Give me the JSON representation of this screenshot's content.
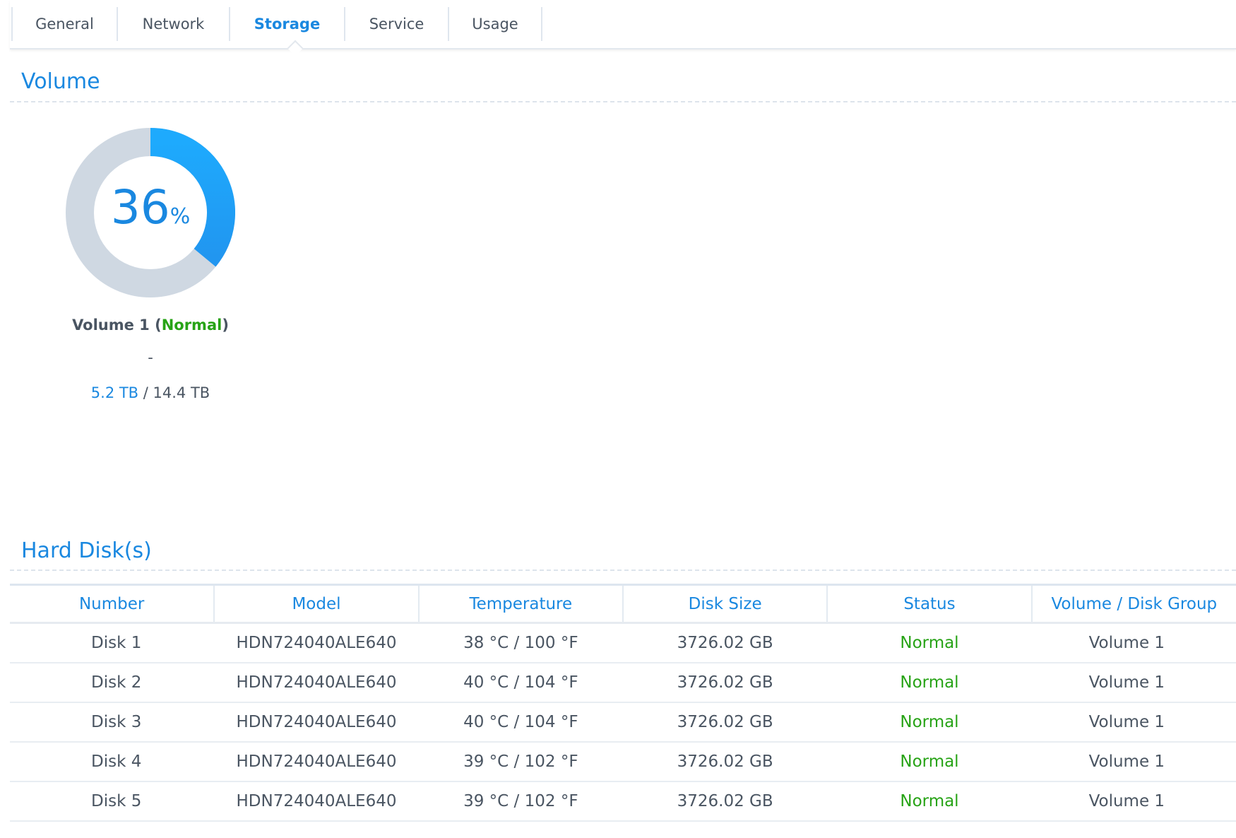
{
  "tabs": [
    {
      "label": "General"
    },
    {
      "label": "Network"
    },
    {
      "label": "Storage",
      "active": true
    },
    {
      "label": "Service"
    },
    {
      "label": "Usage"
    }
  ],
  "volume_section": {
    "title": "Volume",
    "volume": {
      "percent_value": "36",
      "percent_unit": "%",
      "usage_fraction": 0.36,
      "name": "Volume 1 (",
      "status": "Normal",
      "close": ")",
      "description": "-",
      "used": "5.2 TB",
      "separator": " / ",
      "total": "14.4 TB"
    }
  },
  "disks_section": {
    "title": "Hard Disk(s)",
    "columns": [
      "Number",
      "Model",
      "Temperature",
      "Disk Size",
      "Status",
      "Volume / Disk Group"
    ],
    "rows": [
      [
        "Disk 1",
        "HDN724040ALE640",
        "38 °C / 100 °F",
        "3726.02 GB",
        "Normal",
        "Volume 1"
      ],
      [
        "Disk 2",
        "HDN724040ALE640",
        "40 °C / 104 °F",
        "3726.02 GB",
        "Normal",
        "Volume 1"
      ],
      [
        "Disk 3",
        "HDN724040ALE640",
        "40 °C / 104 °F",
        "3726.02 GB",
        "Normal",
        "Volume 1"
      ],
      [
        "Disk 4",
        "HDN724040ALE640",
        "39 °C / 102 °F",
        "3726.02 GB",
        "Normal",
        "Volume 1"
      ],
      [
        "Disk 5",
        "HDN724040ALE640",
        "39 °C / 102 °F",
        "3726.02 GB",
        "Normal",
        "Volume 1"
      ]
    ]
  },
  "colors": {
    "accent": "#1a88e0",
    "normal": "#27a316",
    "track": "#cfd8e2"
  }
}
